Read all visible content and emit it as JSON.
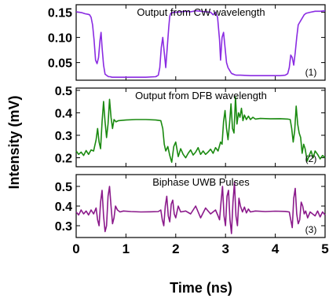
{
  "chart_data": {
    "type": "line",
    "xlabel": "Time (ns)",
    "ylabel": "Intensity (mV)",
    "xlim": [
      0,
      5
    ],
    "xticks": [
      "0",
      "1",
      "2",
      "3",
      "4",
      "5"
    ],
    "panels": [
      {
        "title": "Output from CW wavelength",
        "index_label": "(1)",
        "color": "#8a2be2",
        "ylim": [
          0.015,
          0.165
        ],
        "yticks": [
          "0.05",
          "0.10",
          "0.15"
        ],
        "series": [
          {
            "x": [
              0.0,
              0.06,
              0.12,
              0.18,
              0.24,
              0.27,
              0.3,
              0.33,
              0.36,
              0.39,
              0.42,
              0.45,
              0.48,
              0.5,
              0.52,
              0.55,
              0.58,
              0.62,
              0.65,
              0.68,
              0.72,
              0.8,
              1.0,
              1.2,
              1.4,
              1.6,
              1.65,
              1.68,
              1.71,
              1.74,
              1.77,
              1.8,
              1.83,
              1.86,
              1.88,
              1.9,
              1.93,
              1.96,
              2.0,
              2.1,
              2.2,
              2.3,
              2.4,
              2.5,
              2.6,
              2.7,
              2.75,
              2.8,
              2.84,
              2.88,
              2.9,
              2.93,
              2.96,
              2.99,
              3.02,
              3.05,
              3.08,
              3.11,
              3.13,
              3.16,
              3.18,
              3.22,
              3.3,
              3.5,
              3.7,
              3.9,
              4.1,
              4.2,
              4.25,
              4.28,
              4.31,
              4.34,
              4.37,
              4.4,
              4.43,
              4.46,
              4.49,
              4.52,
              4.55,
              4.58,
              4.62,
              4.7,
              4.8,
              4.9,
              5.0
            ],
            "y": [
              0.151,
              0.15,
              0.149,
              0.147,
              0.146,
              0.145,
              0.14,
              0.125,
              0.095,
              0.055,
              0.048,
              0.06,
              0.095,
              0.11,
              0.08,
              0.045,
              0.027,
              0.024,
              0.022,
              0.022,
              0.021,
              0.021,
              0.021,
              0.021,
              0.021,
              0.022,
              0.025,
              0.04,
              0.08,
              0.1,
              0.07,
              0.04,
              0.08,
              0.12,
              0.142,
              0.148,
              0.149,
              0.15,
              0.15,
              0.151,
              0.152,
              0.151,
              0.153,
              0.152,
              0.151,
              0.15,
              0.145,
              0.15,
              0.14,
              0.095,
              0.055,
              0.1,
              0.11,
              0.08,
              0.05,
              0.04,
              0.035,
              0.03,
              0.028,
              0.027,
              0.026,
              0.025,
              0.025,
              0.024,
              0.024,
              0.024,
              0.024,
              0.025,
              0.028,
              0.04,
              0.065,
              0.06,
              0.045,
              0.07,
              0.1,
              0.125,
              0.13,
              0.135,
              0.14,
              0.145,
              0.148,
              0.15,
              0.152,
              0.152,
              0.153
            ]
          }
        ]
      },
      {
        "title": "Output from DFB wavelength",
        "index_label": "(2)",
        "color": "#1a8a10",
        "ylim": [
          0.16,
          0.51
        ],
        "yticks": [
          "0.2",
          "0.3",
          "0.4",
          "0.5"
        ],
        "series": [
          {
            "x": [
              0.0,
              0.05,
              0.1,
              0.15,
              0.2,
              0.25,
              0.3,
              0.35,
              0.4,
              0.43,
              0.46,
              0.49,
              0.52,
              0.55,
              0.58,
              0.61,
              0.64,
              0.67,
              0.7,
              0.73,
              0.76,
              0.8,
              0.85,
              1.0,
              1.2,
              1.4,
              1.6,
              1.7,
              1.74,
              1.77,
              1.8,
              1.84,
              1.88,
              1.92,
              1.96,
              2.0,
              2.05,
              2.1,
              2.15,
              2.2,
              2.25,
              2.3,
              2.35,
              2.4,
              2.45,
              2.5,
              2.55,
              2.6,
              2.65,
              2.7,
              2.75,
              2.8,
              2.85,
              2.9,
              2.93,
              2.96,
              2.99,
              3.02,
              3.05,
              3.08,
              3.11,
              3.14,
              3.17,
              3.2,
              3.23,
              3.26,
              3.29,
              3.32,
              3.35,
              3.38,
              3.42,
              3.46,
              3.5,
              3.55,
              3.6,
              3.7,
              3.9,
              4.1,
              4.25,
              4.3,
              4.33,
              4.36,
              4.39,
              4.42,
              4.45,
              4.48,
              4.51,
              4.54,
              4.57,
              4.6,
              4.64,
              4.68,
              4.72,
              4.76,
              4.8,
              4.85,
              4.9,
              4.95,
              5.0
            ],
            "y": [
              0.23,
              0.215,
              0.225,
              0.21,
              0.232,
              0.215,
              0.235,
              0.23,
              0.28,
              0.33,
              0.27,
              0.24,
              0.36,
              0.45,
              0.36,
              0.29,
              0.35,
              0.46,
              0.38,
              0.33,
              0.37,
              0.36,
              0.365,
              0.368,
              0.37,
              0.37,
              0.368,
              0.365,
              0.33,
              0.26,
              0.23,
              0.25,
              0.21,
              0.18,
              0.25,
              0.27,
              0.205,
              0.24,
              0.215,
              0.2,
              0.22,
              0.235,
              0.212,
              0.225,
              0.245,
              0.215,
              0.23,
              0.215,
              0.225,
              0.238,
              0.22,
              0.245,
              0.23,
              0.27,
              0.26,
              0.36,
              0.41,
              0.33,
              0.28,
              0.35,
              0.44,
              0.33,
              0.31,
              0.47,
              0.35,
              0.4,
              0.38,
              0.42,
              0.365,
              0.39,
              0.37,
              0.385,
              0.37,
              0.38,
              0.372,
              0.375,
              0.373,
              0.374,
              0.372,
              0.37,
              0.33,
              0.27,
              0.32,
              0.43,
              0.35,
              0.31,
              0.29,
              0.22,
              0.26,
              0.24,
              0.185,
              0.21,
              0.23,
              0.2,
              0.23,
              0.215,
              0.195,
              0.21,
              0.2
            ]
          }
        ]
      },
      {
        "title": "Biphase UWB Pulses",
        "index_label": "(3)",
        "color": "#8b1a8b",
        "ylim": [
          0.24,
          0.56
        ],
        "yticks": [
          "0.3",
          "0.4",
          "0.5"
        ],
        "series": [
          {
            "x": [
              0.0,
              0.05,
              0.1,
              0.15,
              0.2,
              0.25,
              0.3,
              0.35,
              0.4,
              0.43,
              0.46,
              0.49,
              0.52,
              0.55,
              0.58,
              0.61,
              0.64,
              0.67,
              0.7,
              0.73,
              0.76,
              0.79,
              0.83,
              0.88,
              0.95,
              1.1,
              1.3,
              1.5,
              1.65,
              1.7,
              1.73,
              1.76,
              1.79,
              1.82,
              1.85,
              1.88,
              1.91,
              1.94,
              1.97,
              2.0,
              2.05,
              2.1,
              2.2,
              2.3,
              2.4,
              2.5,
              2.6,
              2.7,
              2.8,
              2.85,
              2.88,
              2.91,
              2.94,
              2.97,
              3.0,
              3.03,
              3.06,
              3.09,
              3.12,
              3.15,
              3.18,
              3.21,
              3.24,
              3.27,
              3.3,
              3.34,
              3.38,
              3.42,
              3.46,
              3.5,
              3.6,
              3.8,
              4.0,
              4.2,
              4.28,
              4.31,
              4.34,
              4.37,
              4.4,
              4.43,
              4.46,
              4.49,
              4.52,
              4.55,
              4.58,
              4.61,
              4.65,
              4.7,
              4.75,
              4.8,
              4.85,
              4.9,
              4.95,
              5.0
            ],
            "y": [
              0.37,
              0.355,
              0.38,
              0.36,
              0.375,
              0.355,
              0.38,
              0.36,
              0.39,
              0.33,
              0.3,
              0.42,
              0.48,
              0.35,
              0.27,
              0.3,
              0.45,
              0.5,
              0.4,
              0.31,
              0.34,
              0.4,
              0.38,
              0.37,
              0.375,
              0.372,
              0.37,
              0.371,
              0.372,
              0.38,
              0.33,
              0.3,
              0.4,
              0.45,
              0.35,
              0.32,
              0.41,
              0.43,
              0.36,
              0.34,
              0.4,
              0.37,
              0.375,
              0.36,
              0.4,
              0.34,
              0.39,
              0.36,
              0.38,
              0.35,
              0.33,
              0.42,
              0.5,
              0.35,
              0.3,
              0.45,
              0.48,
              0.33,
              0.26,
              0.42,
              0.52,
              0.35,
              0.3,
              0.44,
              0.4,
              0.37,
              0.395,
              0.365,
              0.385,
              0.37,
              0.375,
              0.372,
              0.374,
              0.373,
              0.37,
              0.33,
              0.29,
              0.44,
              0.49,
              0.36,
              0.31,
              0.33,
              0.42,
              0.4,
              0.36,
              0.375,
              0.34,
              0.37,
              0.36,
              0.35,
              0.375,
              0.345,
              0.37,
              0.355
            ]
          }
        ]
      }
    ]
  }
}
